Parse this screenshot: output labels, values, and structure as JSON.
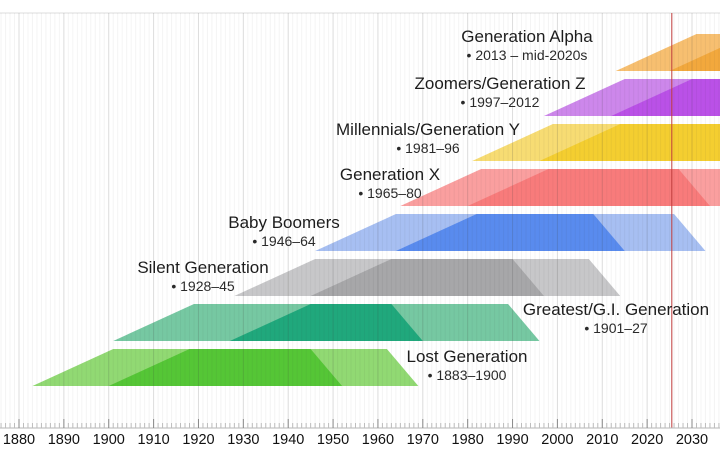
{
  "chart_data": {
    "type": "area",
    "title": "",
    "subtitle": "",
    "description": "Timeline of Western generations shown as translucent trapezoid lifespan bands over a year axis",
    "x_axis": {
      "tick_years": [
        1880,
        1890,
        1900,
        1910,
        1920,
        1930,
        1940,
        1950,
        1960,
        1970,
        1980,
        1990,
        2000,
        2010,
        2020,
        2030
      ],
      "minor_tick_interval_years": 1,
      "visible_range": [
        1876,
        2036
      ],
      "grid": true
    },
    "now_line": {
      "year": 2025.5,
      "color": "#bf3b3b"
    },
    "lifespan_model": {
      "ramp_up_years": 18,
      "plateau_end_age": 62,
      "lifespan_years": 69
    },
    "generations": [
      {
        "id": "lost-generation",
        "name": "Lost Generation",
        "dates_label": "• 1883–1900",
        "birth_start": 1883,
        "birth_end": 1900,
        "color_light": "#91D973",
        "color_dark": "#55C636"
      },
      {
        "id": "greatest-generation",
        "name": "Greatest/G.I. Generation",
        "dates_label": "• 1901–27",
        "birth_start": 1901,
        "birth_end": 1927,
        "color_light": "#76C8A2",
        "color_dark": "#20A87C"
      },
      {
        "id": "silent-generation",
        "name": "Silent Generation",
        "dates_label": "• 1928–45",
        "birth_start": 1928,
        "birth_end": 1945,
        "color_light": "#C7C7C9",
        "color_dark": "#A7A7A9"
      },
      {
        "id": "baby-boomers",
        "name": "Baby Boomers",
        "dates_label": "• 1946–64",
        "birth_start": 1946,
        "birth_end": 1964,
        "color_light": "#A7BFF2",
        "color_dark": "#598BEE"
      },
      {
        "id": "generation-x",
        "name": "Generation X",
        "dates_label": "• 1965–80",
        "birth_start": 1965,
        "birth_end": 1980,
        "color_light": "#FA9F9F",
        "color_dark": "#F87B7B"
      },
      {
        "id": "millennials",
        "name": "Millennials/Generation Y",
        "dates_label": "• 1981–96",
        "birth_start": 1981,
        "birth_end": 1996,
        "color_light": "#F7DC73",
        "color_dark": "#F4CE30"
      },
      {
        "id": "generation-z",
        "name": "Zoomers/Generation Z",
        "dates_label": "• 1997–2012",
        "birth_start": 1997,
        "birth_end": 2012,
        "color_light": "#CD87EB",
        "color_dark": "#BA51E7"
      },
      {
        "id": "generation-alpha",
        "name": "Generation Alpha",
        "dates_label": "• 2013 – mid-2020s",
        "birth_start": 2013,
        "birth_end": 2025,
        "color_light": "#F7BF70",
        "color_dark": "#F2A83D"
      }
    ]
  }
}
